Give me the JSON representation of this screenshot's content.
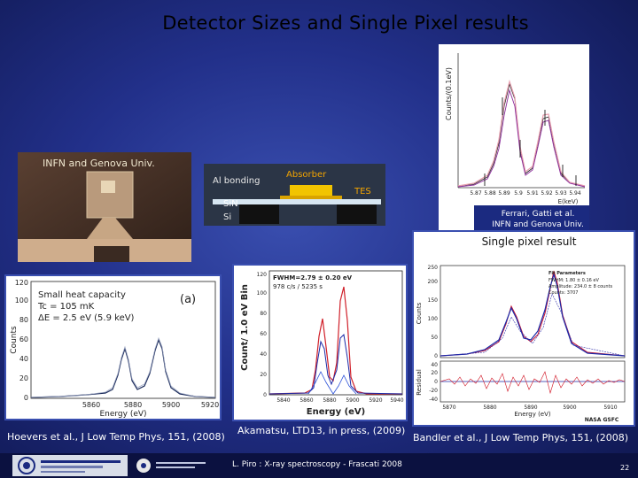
{
  "slide": {
    "title": "Detector Sizes and Single Pixel results",
    "footer": "L. Piro : X-ray spectroscopy - Frascati 2008",
    "page_number": "22"
  },
  "photo": {
    "label": "INFN and Genova Univ."
  },
  "schematic": {
    "labels": [
      "Absorber",
      "Al bonding",
      "TES",
      "SiN",
      "Si"
    ]
  },
  "ferrari_plot": {
    "ylabel": "Counts/(0.1eV)",
    "xlabel": "E(keV)",
    "x_ticks": [
      "5.87",
      "5.88",
      "5.89",
      "5.9",
      "5.91",
      "5.92",
      "5.93",
      "5.94"
    ],
    "caption_line1": "Ferrari, Gatti et al.",
    "caption_line2": "INFN and Genova Univ."
  },
  "hoevers_plot": {
    "annotation_1": "Small heat capacity",
    "annotation_2": "Tc = 105 mK",
    "annotation_3": "ΔE = 2.5 eV (5.9 keV)",
    "panel_label": "(a)",
    "ylabel": "Counts",
    "xlabel": "Energy (eV)",
    "y_ticks": [
      "0",
      "20",
      "40",
      "60",
      "80",
      "100",
      "120"
    ],
    "x_ticks": [
      "5860",
      "5880",
      "5900",
      "5920"
    ],
    "caption": "Hoevers et al., J Low Temp Phys, 151, (2008)"
  },
  "akamatsu_plot": {
    "annotation_1": "FWHM=2.79 ± 0.20 eV",
    "annotation_2": "978 c/s / 5235 s",
    "ylabel": "Count/ 1.0 eV Bin",
    "xlabel": "Energy (eV)",
    "y_ticks": [
      "0",
      "20",
      "40",
      "60",
      "80",
      "100",
      "120"
    ],
    "x_ticks": [
      "5840",
      "5860",
      "5880",
      "5900",
      "5920",
      "5940"
    ],
    "caption": "Akamatsu, LTD13, in press, (2009)"
  },
  "bandler_plot": {
    "header": "Single pixel result",
    "legend_title": "Fit Parameters",
    "legend_1": "FWHM: 1.80 ± 0.16 eV",
    "legend_2": "Amplitude: 234.0 ± 8 counts",
    "legend_3": "Counts: 3707",
    "ylabel_top": "Counts",
    "ylabel_bottom": "Residual",
    "y_ticks": [
      "0",
      "50",
      "100",
      "150",
      "200",
      "250"
    ],
    "res_ticks": [
      "40",
      "20",
      "0",
      "-20",
      "-40"
    ],
    "x_ticks": [
      "5870",
      "5880",
      "5890",
      "5900",
      "5910"
    ],
    "xlabel": "Energy (eV)",
    "badge": "NASA GSFC",
    "caption": "Bandler et al., J Low Temp Phys, 151, (2008)"
  }
}
